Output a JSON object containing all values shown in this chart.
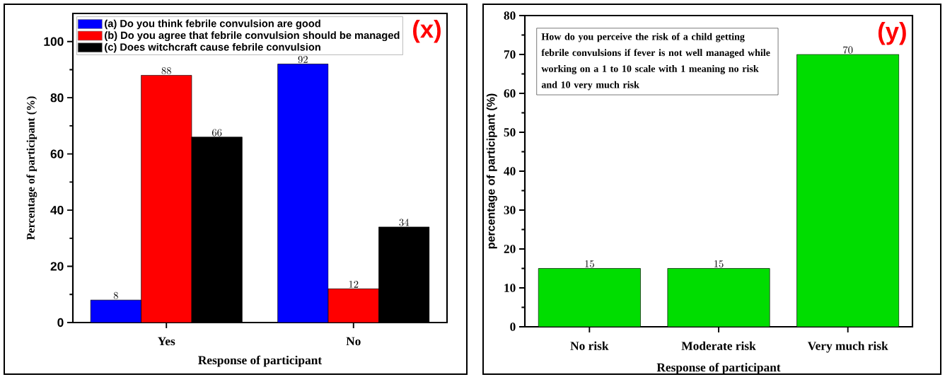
{
  "chart_data": [
    {
      "type": "bar",
      "categories": [
        "Yes",
        "No"
      ],
      "xlabel": "Response of participant",
      "ylabel": "Percentage of participant (%)",
      "series": [
        {
          "name": "(a)  Do you think febrile convulsion are good",
          "color": "#0000ff",
          "values": [
            8,
            92
          ]
        },
        {
          "name": "(b) Do you agree that febrile convulsion should be managed",
          "color": "#ff0000",
          "values": [
            88,
            12
          ]
        },
        {
          "name": "(c) Does witchcraft cause febrile convulsion",
          "color": "#000000",
          "values": [
            66,
            34
          ]
        }
      ],
      "ylim": [
        0,
        110
      ],
      "yticks": [
        0,
        20,
        40,
        60,
        80,
        100
      ],
      "data_labels": true,
      "legend": "top left",
      "grid": false,
      "annotations": [
        "(x)"
      ]
    },
    {
      "type": "bar",
      "categories": [
        "No risk",
        "Moderate risk",
        "Very much risk"
      ],
      "xlabel": "Response of participant",
      "ylabel": "percentage of participant (%)",
      "values": [
        15,
        15,
        70
      ],
      "color": "#00dd00",
      "ylim": [
        0,
        80
      ],
      "yticks": [
        0,
        10,
        20,
        30,
        40,
        50,
        60,
        70,
        80
      ],
      "data_labels": true,
      "grid": false,
      "annotations": [
        "(y)",
        "How do you perceive the risk of a child getting febrile convulsions if fever is not well managed while working on a 1 to 10 scale with 1 meaning no risk and 10 very much risk"
      ]
    }
  ]
}
